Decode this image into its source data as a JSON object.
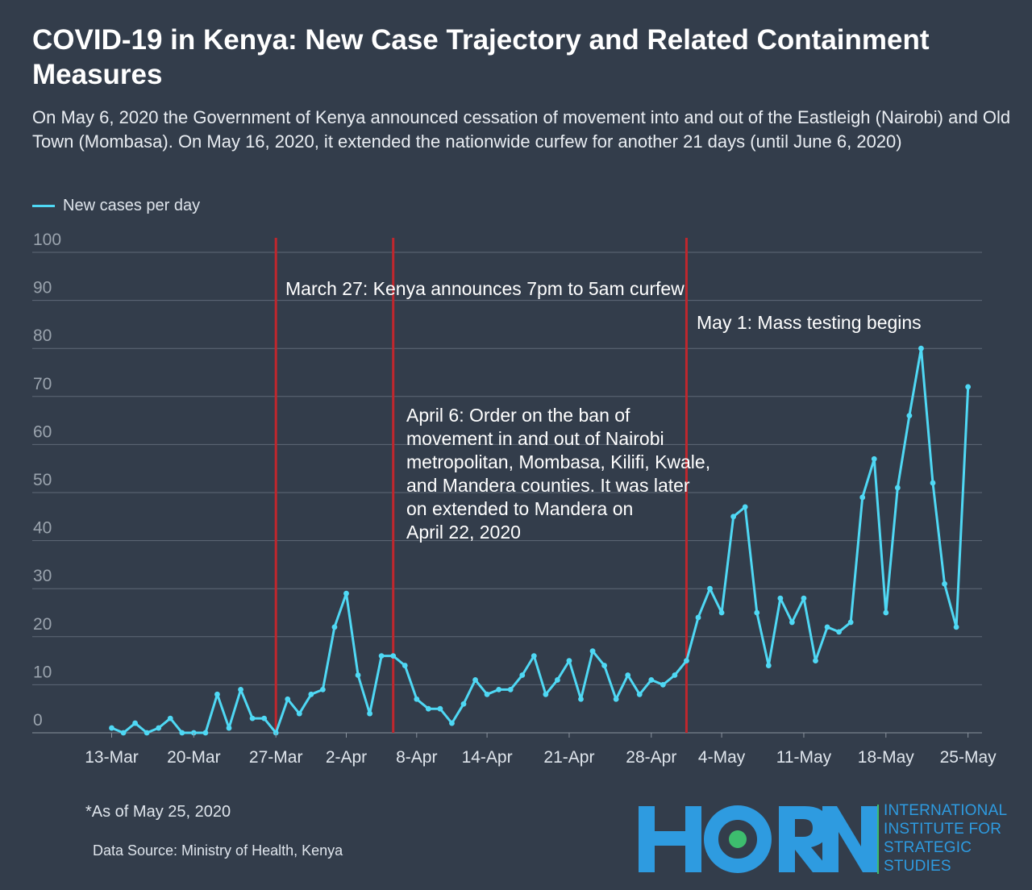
{
  "header": {
    "title": "COVID-19 in Kenya: New Case Trajectory and Related Containment Measures",
    "subtitle": "On May 6, 2020 the Government of Kenya announced cessation of movement into and out of the Eastleigh (Nairobi) and Old Town (Mombasa). On May 16, 2020,  it extended the nationwide curfew for another 21 days (until June 6, 2020)"
  },
  "colors": {
    "background": "#333d4b",
    "line": "#4fd8f4",
    "event_line": "#c0272d",
    "grid": "#5f6977",
    "logo_blue": "#2e9be0",
    "logo_green": "#3dbd6e"
  },
  "chart_data": {
    "type": "line",
    "title": "COVID-19 in Kenya: New Case Trajectory and Related Containment Measures",
    "xlabel": "",
    "ylabel": "",
    "ylim": [
      0,
      100
    ],
    "yticks": [
      0,
      10,
      20,
      30,
      40,
      50,
      60,
      70,
      80,
      90,
      100
    ],
    "grid": true,
    "legend": "top-left",
    "x_tick_labels": [
      "13-Mar",
      "20-Mar",
      "27-Mar",
      "2-Apr",
      "8-Apr",
      "14-Apr",
      "21-Apr",
      "28-Apr",
      "4-May",
      "11-May",
      "18-May",
      "25-May"
    ],
    "x_start": "13-Mar",
    "series": [
      {
        "name": "New cases per day",
        "values": [
          1,
          0,
          2,
          0,
          1,
          3,
          0,
          0,
          0,
          8,
          1,
          9,
          3,
          3,
          0,
          7,
          4,
          8,
          9,
          22,
          29,
          12,
          4,
          16,
          16,
          14,
          7,
          5,
          5,
          2,
          6,
          11,
          8,
          9,
          9,
          12,
          16,
          8,
          11,
          15,
          7,
          17,
          14,
          7,
          12,
          8,
          11,
          10,
          12,
          15,
          24,
          30,
          25,
          45,
          47,
          25,
          14,
          28,
          23,
          28,
          15,
          22,
          21,
          23,
          49,
          57,
          25,
          51,
          66,
          80,
          52,
          31,
          22,
          72
        ]
      }
    ],
    "annotations": [
      {
        "date": "27-Mar",
        "label": "March 27: Kenya announces 7pm to 5am curfew"
      },
      {
        "date": "6-Apr",
        "label_lines": [
          "April 6: Order on the ban of",
          "movement in and out of Nairobi",
          "metropolitan, Mombasa, Kilifi, Kwale,",
          "and Mandera counties. It was later",
          "on extended to Mandera on",
          "April 22, 2020"
        ]
      },
      {
        "date": "1-May",
        "label": "May 1: Mass testing begins"
      }
    ]
  },
  "footer": {
    "note": "*As of May 25, 2020",
    "source": "Data Source: Ministry of Health, Kenya"
  },
  "logo": {
    "wordmark": "HORN",
    "text_lines": [
      "INTERNATIONAL",
      "INSTITUTE FOR",
      "STRATEGIC",
      "STUDIES"
    ]
  }
}
